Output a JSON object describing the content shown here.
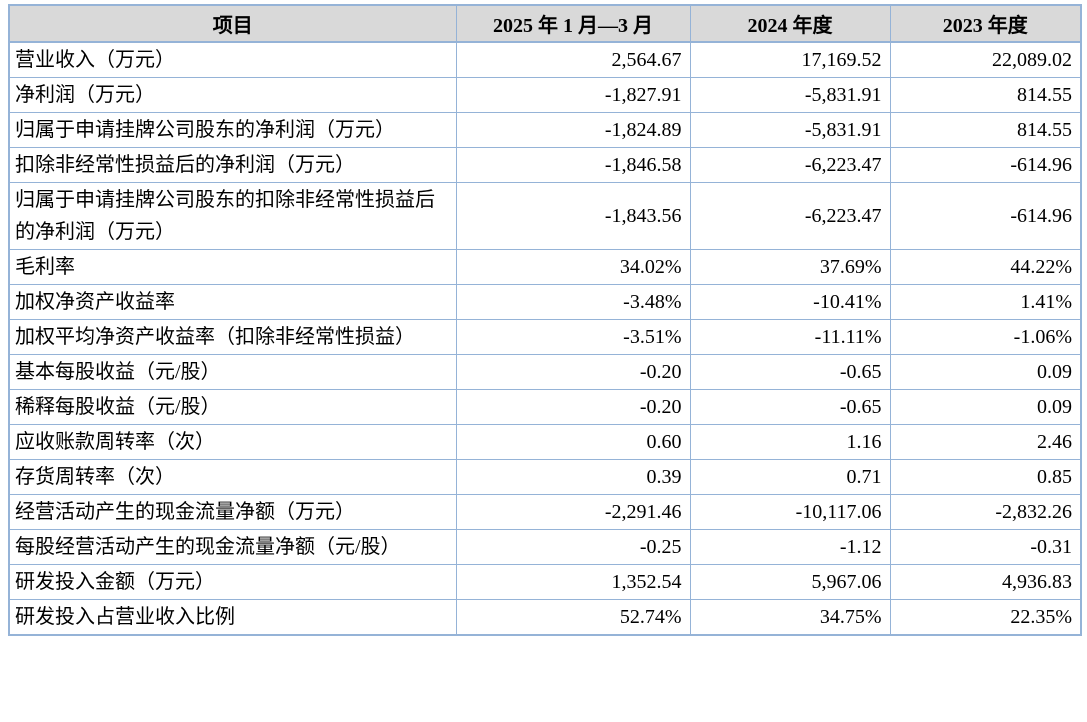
{
  "table": {
    "columns": [
      "项目",
      "2025 年 1 月—3 月",
      "2024 年度",
      "2023 年度"
    ],
    "rows": [
      {
        "label": "营业收入（万元）",
        "values": [
          "2,564.67",
          "17,169.52",
          "22,089.02"
        ]
      },
      {
        "label": "净利润（万元）",
        "values": [
          "-1,827.91",
          "-5,831.91",
          "814.55"
        ]
      },
      {
        "label": "归属于申请挂牌公司股东的净利润（万元）",
        "values": [
          "-1,824.89",
          "-5,831.91",
          "814.55"
        ]
      },
      {
        "label": "扣除非经常性损益后的净利润（万元）",
        "values": [
          "-1,846.58",
          "-6,223.47",
          "-614.96"
        ]
      },
      {
        "label": "归属于申请挂牌公司股东的扣除非经常性损益后的净利润（万元）",
        "values": [
          "-1,843.56",
          "-6,223.47",
          "-614.96"
        ]
      },
      {
        "label": "毛利率",
        "values": [
          "34.02%",
          "37.69%",
          "44.22%"
        ]
      },
      {
        "label": "加权净资产收益率",
        "values": [
          "-3.48%",
          "-10.41%",
          "1.41%"
        ]
      },
      {
        "label": "加权平均净资产收益率（扣除非经常性损益）",
        "values": [
          "-3.51%",
          "-11.11%",
          "-1.06%"
        ]
      },
      {
        "label": "基本每股收益（元/股）",
        "values": [
          "-0.20",
          "-0.65",
          "0.09"
        ]
      },
      {
        "label": "稀释每股收益（元/股）",
        "values": [
          "-0.20",
          "-0.65",
          "0.09"
        ]
      },
      {
        "label": "应收账款周转率（次）",
        "values": [
          "0.60",
          "1.16",
          "2.46"
        ]
      },
      {
        "label": "存货周转率（次）",
        "values": [
          "0.39",
          "0.71",
          "0.85"
        ]
      },
      {
        "label": "经营活动产生的现金流量净额（万元）",
        "values": [
          "-2,291.46",
          "-10,117.06",
          "-2,832.26"
        ]
      },
      {
        "label": "每股经营活动产生的现金流量净额（元/股）",
        "values": [
          "-0.25",
          "-1.12",
          "-0.31"
        ]
      },
      {
        "label": "研发投入金额（万元）",
        "values": [
          "1,352.54",
          "5,967.06",
          "4,936.83"
        ]
      },
      {
        "label": "研发投入占营业收入比例",
        "values": [
          "52.74%",
          "34.75%",
          "22.35%"
        ]
      }
    ],
    "colors": {
      "border": "#95b3d7",
      "header_bg": "#d9d9d9",
      "text": "#000000"
    }
  }
}
